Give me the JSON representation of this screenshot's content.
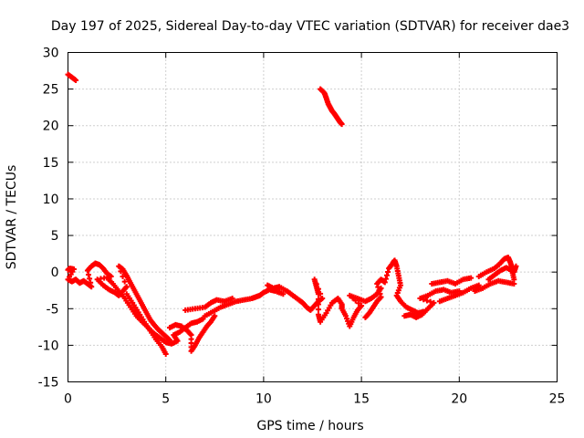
{
  "chart_data": {
    "type": "scatter",
    "title": "Day 197 of 2025, Sidereal Day-to-day VTEC variation (SDTVAR) for receiver dae3",
    "xlabel": "GPS time / hours",
    "ylabel": "SDTVAR / TECUs",
    "xlim": [
      0,
      25
    ],
    "ylim": [
      -15,
      30
    ],
    "xticks": [
      0,
      5,
      10,
      15,
      20,
      25
    ],
    "yticks": [
      -15,
      -10,
      -5,
      0,
      5,
      10,
      15,
      20,
      25,
      30
    ],
    "grid": true,
    "marker": "plus",
    "color": "#ff0000",
    "series": [
      {
        "name": "SDTVAR",
        "points": [
          [
            0.0,
            27.0
          ],
          [
            0.2,
            26.6
          ],
          [
            0.4,
            26.2
          ],
          [
            12.9,
            25.0
          ],
          [
            13.1,
            24.5
          ],
          [
            13.2,
            23.8
          ],
          [
            13.3,
            23.0
          ],
          [
            13.4,
            22.5
          ],
          [
            13.5,
            22.0
          ],
          [
            13.6,
            21.7
          ],
          [
            13.7,
            21.3
          ],
          [
            13.8,
            20.9
          ],
          [
            13.9,
            20.5
          ],
          [
            14.0,
            20.2
          ],
          [
            0.0,
            0.3
          ],
          [
            0.1,
            0.5
          ],
          [
            0.3,
            0.4
          ],
          [
            0.0,
            -1.0
          ],
          [
            0.2,
            -1.3
          ],
          [
            0.4,
            -1.0
          ],
          [
            0.6,
            -1.5
          ],
          [
            0.8,
            -1.2
          ],
          [
            1.0,
            -1.6
          ],
          [
            1.2,
            -2.0
          ],
          [
            1.0,
            0.2
          ],
          [
            1.2,
            0.8
          ],
          [
            1.4,
            1.2
          ],
          [
            1.6,
            1.0
          ],
          [
            1.8,
            0.5
          ],
          [
            2.0,
            -0.2
          ],
          [
            2.2,
            -0.6
          ],
          [
            1.5,
            -1.0
          ],
          [
            1.8,
            -1.8
          ],
          [
            2.1,
            -2.4
          ],
          [
            2.4,
            -2.8
          ],
          [
            2.6,
            -3.2
          ],
          [
            2.8,
            -2.6
          ],
          [
            3.0,
            -2.0
          ],
          [
            2.6,
            0.8
          ],
          [
            2.8,
            0.4
          ],
          [
            3.0,
            -0.5
          ],
          [
            3.2,
            -1.5
          ],
          [
            3.4,
            -2.5
          ],
          [
            3.6,
            -3.5
          ],
          [
            3.8,
            -4.5
          ],
          [
            4.0,
            -5.5
          ],
          [
            4.2,
            -6.5
          ],
          [
            4.4,
            -7.2
          ],
          [
            4.6,
            -7.8
          ],
          [
            4.8,
            -8.3
          ],
          [
            5.0,
            -8.8
          ],
          [
            5.2,
            -9.3
          ],
          [
            3.0,
            -3.0
          ],
          [
            3.3,
            -4.2
          ],
          [
            3.6,
            -5.5
          ],
          [
            3.9,
            -6.8
          ],
          [
            4.2,
            -8.0
          ],
          [
            4.5,
            -9.2
          ],
          [
            4.8,
            -10.2
          ],
          [
            5.0,
            -11.2
          ],
          [
            2.0,
            -0.8
          ],
          [
            2.3,
            -1.6
          ],
          [
            2.6,
            -2.6
          ],
          [
            2.9,
            -3.6
          ],
          [
            3.2,
            -4.8
          ],
          [
            3.5,
            -6.0
          ],
          [
            3.8,
            -6.8
          ],
          [
            4.1,
            -7.6
          ],
          [
            4.4,
            -8.4
          ],
          [
            4.7,
            -9.0
          ],
          [
            5.0,
            -9.6
          ],
          [
            5.3,
            -9.8
          ],
          [
            5.6,
            -9.4
          ],
          [
            5.4,
            -8.6
          ],
          [
            5.7,
            -8.2
          ],
          [
            6.0,
            -7.6
          ],
          [
            6.3,
            -7.0
          ],
          [
            6.6,
            -6.8
          ],
          [
            6.9,
            -6.4
          ],
          [
            5.2,
            -7.6
          ],
          [
            5.5,
            -7.2
          ],
          [
            5.8,
            -7.4
          ],
          [
            6.1,
            -8.0
          ],
          [
            6.3,
            -8.6
          ],
          [
            6.3,
            -10.8
          ],
          [
            6.5,
            -10.0
          ],
          [
            6.7,
            -9.0
          ],
          [
            6.9,
            -8.2
          ],
          [
            7.1,
            -7.4
          ],
          [
            7.3,
            -6.8
          ],
          [
            7.5,
            -6.0
          ],
          [
            6.0,
            -5.2
          ],
          [
            6.5,
            -5.0
          ],
          [
            7.0,
            -4.8
          ],
          [
            7.3,
            -4.2
          ],
          [
            7.6,
            -3.8
          ],
          [
            8.0,
            -4.0
          ],
          [
            8.4,
            -3.6
          ],
          [
            7.0,
            -6.0
          ],
          [
            7.4,
            -5.4
          ],
          [
            7.8,
            -4.8
          ],
          [
            8.2,
            -4.4
          ],
          [
            8.6,
            -4.0
          ],
          [
            9.0,
            -3.8
          ],
          [
            9.4,
            -3.6
          ],
          [
            9.6,
            -3.4
          ],
          [
            9.8,
            -3.2
          ],
          [
            10.0,
            -2.8
          ],
          [
            10.3,
            -2.4
          ],
          [
            10.6,
            -2.6
          ],
          [
            11.0,
            -3.0
          ],
          [
            10.2,
            -1.8
          ],
          [
            10.5,
            -2.2
          ],
          [
            10.8,
            -2.0
          ],
          [
            11.2,
            -2.6
          ],
          [
            11.5,
            -3.2
          ],
          [
            11.8,
            -3.8
          ],
          [
            12.0,
            -4.2
          ],
          [
            12.2,
            -4.8
          ],
          [
            12.4,
            -5.2
          ],
          [
            12.6,
            -4.6
          ],
          [
            12.8,
            -4.0
          ],
          [
            13.0,
            -3.6
          ],
          [
            12.6,
            -1.0
          ],
          [
            12.7,
            -2.0
          ],
          [
            12.8,
            -3.0
          ],
          [
            12.8,
            -5.8
          ],
          [
            12.9,
            -6.8
          ],
          [
            13.2,
            -5.6
          ],
          [
            13.5,
            -4.2
          ],
          [
            13.8,
            -3.6
          ],
          [
            14.0,
            -4.4
          ],
          [
            14.0,
            -5.0
          ],
          [
            14.2,
            -6.0
          ],
          [
            14.4,
            -7.4
          ],
          [
            14.6,
            -6.2
          ],
          [
            14.8,
            -5.2
          ],
          [
            15.0,
            -4.6
          ],
          [
            14.4,
            -3.2
          ],
          [
            14.8,
            -3.6
          ],
          [
            15.2,
            -4.0
          ],
          [
            15.5,
            -3.6
          ],
          [
            15.8,
            -3.0
          ],
          [
            16.0,
            -2.2
          ],
          [
            15.2,
            -6.2
          ],
          [
            15.4,
            -5.6
          ],
          [
            15.6,
            -4.8
          ],
          [
            15.8,
            -4.0
          ],
          [
            16.0,
            -3.4
          ],
          [
            15.8,
            -1.6
          ],
          [
            16.0,
            -1.0
          ],
          [
            16.2,
            -1.4
          ],
          [
            16.4,
            0.5
          ],
          [
            16.6,
            1.2
          ],
          [
            16.7,
            1.6
          ],
          [
            16.8,
            0.8
          ],
          [
            16.9,
            -0.5
          ],
          [
            17.0,
            -1.8
          ],
          [
            16.8,
            -3.2
          ],
          [
            17.0,
            -4.0
          ],
          [
            17.3,
            -4.8
          ],
          [
            17.6,
            -5.2
          ],
          [
            17.9,
            -5.6
          ],
          [
            18.2,
            -5.4
          ],
          [
            17.2,
            -6.0
          ],
          [
            17.5,
            -5.8
          ],
          [
            17.8,
            -6.2
          ],
          [
            18.1,
            -5.8
          ],
          [
            18.4,
            -5.0
          ],
          [
            18.7,
            -4.2
          ],
          [
            18.0,
            -3.6
          ],
          [
            18.4,
            -3.2
          ],
          [
            18.8,
            -2.6
          ],
          [
            19.2,
            -2.4
          ],
          [
            19.6,
            -2.8
          ],
          [
            20.0,
            -2.6
          ],
          [
            18.6,
            -1.6
          ],
          [
            19.0,
            -1.4
          ],
          [
            19.4,
            -1.2
          ],
          [
            19.8,
            -1.6
          ],
          [
            20.2,
            -1.0
          ],
          [
            20.6,
            -0.8
          ],
          [
            19.0,
            -4.0
          ],
          [
            19.4,
            -3.6
          ],
          [
            19.8,
            -3.2
          ],
          [
            20.2,
            -2.8
          ],
          [
            20.6,
            -2.2
          ],
          [
            21.0,
            -1.8
          ],
          [
            20.8,
            -2.6
          ],
          [
            21.2,
            -2.2
          ],
          [
            21.6,
            -1.6
          ],
          [
            22.0,
            -1.2
          ],
          [
            22.4,
            -1.4
          ],
          [
            22.8,
            -1.6
          ],
          [
            21.0,
            -0.6
          ],
          [
            21.4,
            0.0
          ],
          [
            21.8,
            0.5
          ],
          [
            22.1,
            1.2
          ],
          [
            22.3,
            1.8
          ],
          [
            22.5,
            2.0
          ],
          [
            22.6,
            1.4
          ],
          [
            22.7,
            0.6
          ],
          [
            22.8,
            0.0
          ],
          [
            22.9,
            0.8
          ],
          [
            21.5,
            -1.0
          ],
          [
            21.8,
            -0.4
          ],
          [
            22.1,
            0.2
          ],
          [
            22.4,
            0.6
          ],
          [
            22.7,
            0.2
          ],
          [
            22.8,
            -1.0
          ]
        ]
      }
    ]
  }
}
